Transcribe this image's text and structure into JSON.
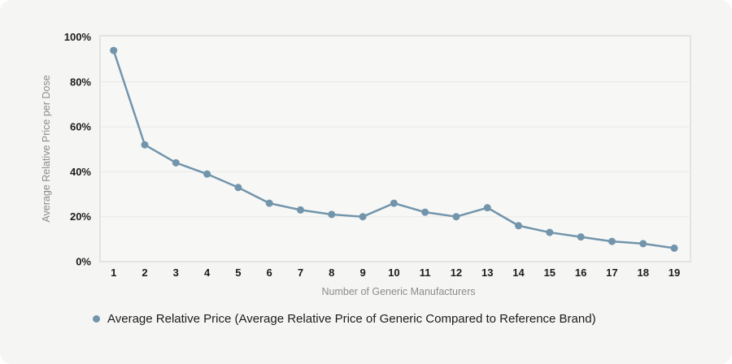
{
  "card": {
    "background": "#f5f5f4",
    "plot_background": "#f7f7f6",
    "border_color": "#e3e3e2",
    "grid_color": "#e8e8e7"
  },
  "chart_data": {
    "type": "line",
    "title": "",
    "xlabel": "Number of Generic Manufacturers",
    "ylabel": "Average Relative Price per Dose",
    "categories": [
      "1",
      "2",
      "3",
      "4",
      "5",
      "6",
      "7",
      "8",
      "9",
      "10",
      "11",
      "12",
      "13",
      "14",
      "15",
      "16",
      "17",
      "18",
      "19"
    ],
    "series": [
      {
        "name": "Average Relative Price (Average Relative Price of Generic Compared to Reference Brand)",
        "color": "#7295ab",
        "values": [
          94,
          52,
          44,
          39,
          33,
          26,
          23,
          21,
          20,
          26,
          22,
          20,
          24,
          16,
          13,
          11,
          9,
          8,
          6
        ]
      }
    ],
    "ylim": [
      0,
      100
    ],
    "y_ticks": [
      {
        "v": 0,
        "label": "0%"
      },
      {
        "v": 20,
        "label": "20%"
      },
      {
        "v": 40,
        "label": "40%"
      },
      {
        "v": 60,
        "label": "60%"
      },
      {
        "v": 80,
        "label": "80%"
      },
      {
        "v": 100,
        "label": "100%"
      }
    ],
    "grid": true,
    "legend_position": "bottom"
  }
}
